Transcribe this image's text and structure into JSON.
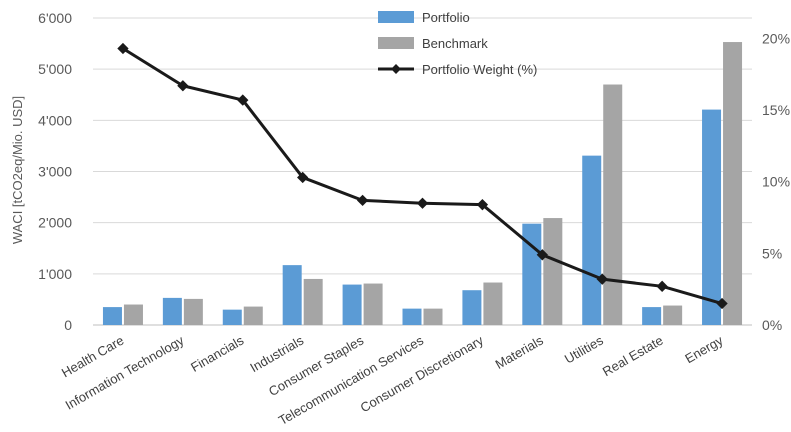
{
  "chart_data": {
    "type": "bar",
    "categories": [
      "Health Care",
      "Information Technology",
      "Financials",
      "Industrials",
      "Consumer Staples",
      "Telecommunication Services",
      "Consumer Discretionary",
      "Materials",
      "Utilities",
      "Real Estate",
      "Energy"
    ],
    "series": [
      {
        "name": "Portfolio",
        "type": "bar",
        "axis": "left",
        "color": "#5b9bd5",
        "values": [
          350,
          530,
          300,
          1170,
          790,
          320,
          680,
          1980,
          3310,
          350,
          4210
        ]
      },
      {
        "name": "Benchmark",
        "type": "bar",
        "axis": "left",
        "color": "#a5a5a5",
        "values": [
          400,
          510,
          360,
          900,
          810,
          320,
          830,
          2090,
          4700,
          380,
          5530
        ]
      },
      {
        "name": "Portfolio Weight (%)",
        "type": "line",
        "axis": "right",
        "color": "#1a1a1a",
        "values": [
          19.3,
          16.7,
          15.7,
          10.3,
          8.7,
          8.5,
          8.4,
          4.9,
          3.2,
          2.7,
          1.5
        ]
      }
    ],
    "ylabel": "WACI [tCO2eq/Mio. USD]",
    "ylim": [
      0,
      6000
    ],
    "y_ticks": [
      "0",
      "1'000",
      "2'000",
      "3'000",
      "4'000",
      "5'000",
      "6'000"
    ],
    "y2lim": [
      0,
      21.43
    ],
    "y2_ticks": [
      {
        "value": 0,
        "label": "0%"
      },
      {
        "value": 5,
        "label": "5%"
      },
      {
        "value": 10,
        "label": "10%"
      },
      {
        "value": 15,
        "label": "15%"
      },
      {
        "value": 20,
        "label": "20%"
      }
    ],
    "grid": true,
    "legend_position": "top-center"
  }
}
